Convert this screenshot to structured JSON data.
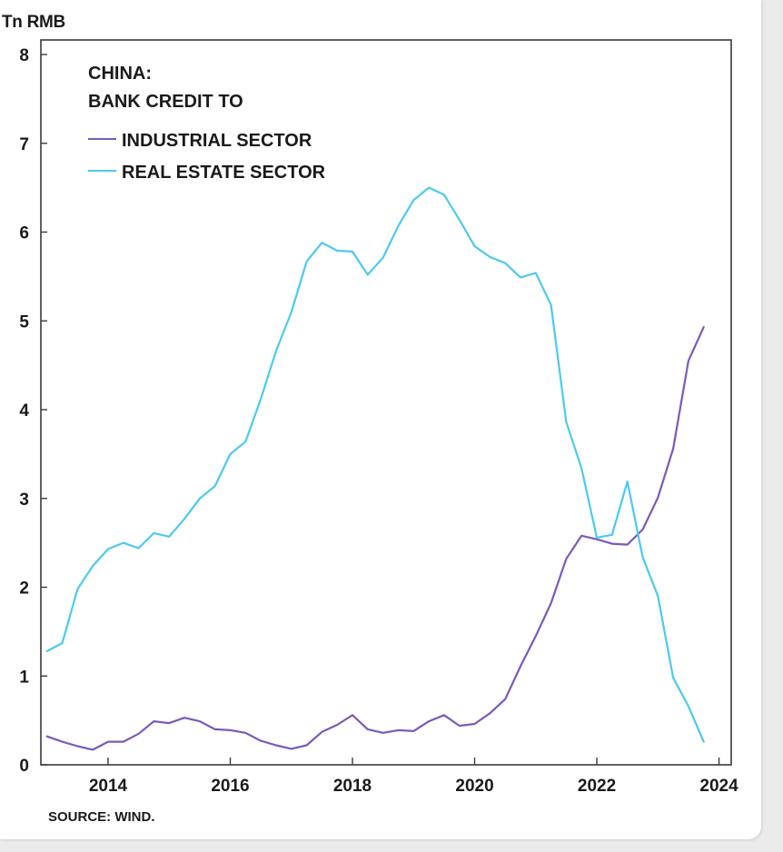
{
  "colors": {
    "industrial": "#7b5ab8",
    "real_estate": "#4cc9f0",
    "axis": "#3a3a3a",
    "text": "#1a1a1a"
  },
  "chart_data": {
    "type": "line",
    "title_lines": [
      "CHINA:",
      "BANK CREDIT TO"
    ],
    "ylabel": "Tn RMB",
    "xlabel": "",
    "xlim": [
      2012.9,
      2024.2
    ],
    "ylim": [
      0,
      8.2
    ],
    "x_ticks": [
      {
        "value": 2014,
        "label": "2014"
      },
      {
        "value": 2016,
        "label": "2016"
      },
      {
        "value": 2018,
        "label": "2018"
      },
      {
        "value": 2020,
        "label": "2020"
      },
      {
        "value": 2022,
        "label": "2022"
      },
      {
        "value": 2024,
        "label": "2024"
      }
    ],
    "y_ticks": [
      {
        "value": 0,
        "label": "0"
      },
      {
        "value": 1,
        "label": "1"
      },
      {
        "value": 2,
        "label": "2"
      },
      {
        "value": 3,
        "label": "3"
      },
      {
        "value": 4,
        "label": "4"
      },
      {
        "value": 5,
        "label": "5"
      },
      {
        "value": 6,
        "label": "6"
      },
      {
        "value": 7,
        "label": "7"
      },
      {
        "value": 8,
        "label": "8"
      }
    ],
    "grid": false,
    "legend_position": "top-left",
    "series": [
      {
        "name": "INDUSTRIAL SECTOR",
        "color_key": "industrial",
        "x": [
          2013.0,
          2013.25,
          2013.5,
          2013.75,
          2014.0,
          2014.25,
          2014.5,
          2014.75,
          2015.0,
          2015.25,
          2015.5,
          2015.75,
          2016.0,
          2016.25,
          2016.5,
          2016.75,
          2017.0,
          2017.25,
          2017.5,
          2017.75,
          2018.0,
          2018.25,
          2018.5,
          2018.75,
          2019.0,
          2019.25,
          2019.5,
          2019.75,
          2020.0,
          2020.25,
          2020.5,
          2020.75,
          2021.0,
          2021.25,
          2021.5,
          2021.75,
          2022.0,
          2022.25,
          2022.5,
          2022.75,
          2023.0,
          2023.25,
          2023.5,
          2023.75
        ],
        "values": [
          0.32,
          0.26,
          0.21,
          0.17,
          0.26,
          0.26,
          0.35,
          0.49,
          0.47,
          0.53,
          0.49,
          0.4,
          0.39,
          0.36,
          0.27,
          0.22,
          0.18,
          0.22,
          0.37,
          0.45,
          0.56,
          0.4,
          0.36,
          0.39,
          0.38,
          0.49,
          0.56,
          0.44,
          0.46,
          0.58,
          0.74,
          1.11,
          1.45,
          1.82,
          2.32,
          2.58,
          2.54,
          2.49,
          2.48,
          2.65,
          3.01,
          3.56,
          4.55,
          4.93
        ]
      },
      {
        "name": "REAL ESTATE SECTOR",
        "color_key": "real_estate",
        "x": [
          2013.0,
          2013.25,
          2013.5,
          2013.75,
          2014.0,
          2014.25,
          2014.5,
          2014.75,
          2015.0,
          2015.25,
          2015.5,
          2015.75,
          2016.0,
          2016.25,
          2016.5,
          2016.75,
          2017.0,
          2017.25,
          2017.5,
          2017.75,
          2018.0,
          2018.25,
          2018.5,
          2018.75,
          2019.0,
          2019.25,
          2019.5,
          2019.75,
          2020.0,
          2020.25,
          2020.5,
          2020.75,
          2021.0,
          2021.25,
          2021.5,
          2021.75,
          2022.0,
          2022.25,
          2022.5,
          2022.75,
          2023.0,
          2023.25,
          2023.5,
          2023.75
        ],
        "values": [
          1.28,
          1.37,
          1.98,
          2.24,
          2.43,
          2.5,
          2.44,
          2.61,
          2.57,
          2.77,
          3.0,
          3.14,
          3.5,
          3.64,
          4.12,
          4.66,
          5.1,
          5.67,
          5.88,
          5.79,
          5.78,
          5.52,
          5.71,
          6.07,
          6.36,
          6.5,
          6.42,
          6.14,
          5.84,
          5.72,
          5.65,
          5.49,
          5.54,
          5.18,
          3.86,
          3.34,
          2.56,
          2.59,
          3.19,
          2.34,
          1.9,
          0.98,
          0.66,
          0.26
        ]
      }
    ]
  },
  "source": "SOURCE: WIND."
}
